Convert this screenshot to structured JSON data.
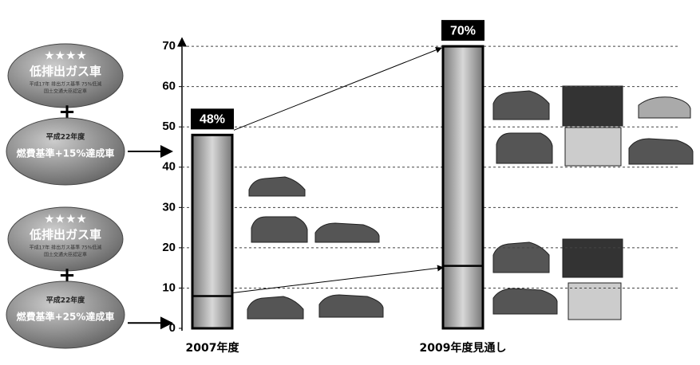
{
  "chart_data": {
    "type": "bar",
    "categories": [
      "2007年度",
      "2009年度見通し"
    ],
    "values": [
      48,
      70
    ],
    "value_labels": [
      "48%",
      "70%"
    ],
    "divider_values": [
      8,
      15.5
    ],
    "ylim": [
      0,
      72
    ],
    "yticks": [
      0,
      10,
      20,
      30,
      40,
      50,
      60,
      70
    ],
    "grid": true,
    "color": "#a8a8a8",
    "badges": [
      {
        "stars": "★★★★",
        "title": "低排出ガス車",
        "note1": "平成17年 排出ガス基準 75%低減",
        "note2": "国土交通大臣認定車",
        "plus": "+",
        "year": "平成22年度",
        "target": "燃費基準+15%達成車"
      },
      {
        "stars": "★★★★",
        "title": "低排出ガス車",
        "note1": "平成17年 排出ガス基準 75%低減",
        "note2": "国土交通大臣認定車",
        "plus": "+",
        "year": "平成22年度",
        "target": "燃費基準+25%達成車"
      }
    ]
  }
}
